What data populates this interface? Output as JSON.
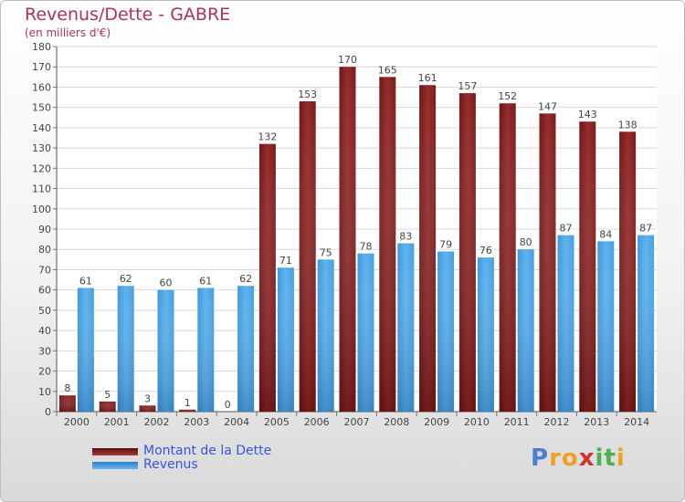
{
  "chart_data": {
    "type": "bar",
    "title": "Revenus/Dette - GABRE",
    "subtitle": "(en milliers d'€)",
    "categories": [
      "2000",
      "2001",
      "2002",
      "2003",
      "2004",
      "2005",
      "2006",
      "2007",
      "2008",
      "2009",
      "2010",
      "2011",
      "2012",
      "2013",
      "2014"
    ],
    "series": [
      {
        "name": "Montant de la Dette",
        "values": [
          8,
          5,
          3,
          1,
          0,
          132,
          153,
          170,
          165,
          161,
          157,
          152,
          147,
          143,
          138
        ],
        "color": "#8b2323"
      },
      {
        "name": "Revenus",
        "values": [
          61,
          62,
          60,
          61,
          62,
          71,
          75,
          78,
          83,
          79,
          76,
          80,
          87,
          84,
          87
        ],
        "color": "#4da6e6"
      }
    ],
    "ylim": [
      0,
      180
    ],
    "yticks": [
      0,
      10,
      20,
      30,
      40,
      50,
      60,
      70,
      80,
      90,
      100,
      110,
      120,
      130,
      140,
      150,
      160,
      170,
      180
    ],
    "grid": true,
    "legend_position": "bottom-left"
  },
  "logo": {
    "letters": [
      "P",
      "r",
      "o",
      "x",
      "i",
      "t",
      "i"
    ],
    "colors": [
      "#4a7fd4",
      "#f0a020",
      "#f0a020",
      "#d03030",
      "#4caf50",
      "#4caf50",
      "#f0a020"
    ]
  }
}
